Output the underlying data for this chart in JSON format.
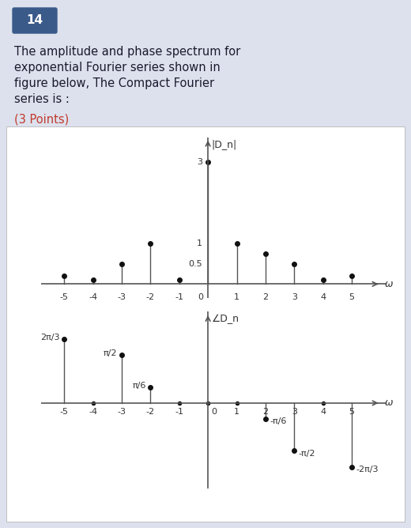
{
  "title_num": "14",
  "title_text": "The amplitude and phase spectrum for\nexponential Fourier series shown in\nfigure below, The Compact Fourier\nseries is :",
  "points_text": "(3 Points)",
  "bg_color": "#dde1ed",
  "plot_bg": "#ffffff",
  "amp_ylabel": "|D_n|",
  "phase_ylabel": "∠D_n",
  "omega_label": "ω",
  "amp_n": [
    -5,
    -4,
    -3,
    -2,
    -1,
    0,
    1,
    2,
    3,
    4,
    5
  ],
  "amp_v": [
    0.2,
    0.1,
    0.5,
    1.0,
    0.1,
    3.0,
    1.0,
    0.75,
    0.5,
    0.1,
    0.2
  ],
  "phase_n": [
    -5,
    -4,
    -3,
    -2,
    -1,
    0,
    1,
    2,
    3,
    4,
    5
  ],
  "phase_v": [
    2.094,
    0.0,
    1.5708,
    0.5236,
    0.0,
    0.0,
    0.0,
    -0.5236,
    -1.5708,
    0.0,
    -2.094
  ],
  "amp_ylim": [
    -0.35,
    3.6
  ],
  "phase_ylim": [
    -2.8,
    3.0
  ],
  "xlim": [
    -5.8,
    6.2
  ],
  "badge_color": "#3a5a8a",
  "text_color": "#1a1a2e",
  "points_color": "#c0392b",
  "line_color": "#555555",
  "dot_color": "#111111"
}
